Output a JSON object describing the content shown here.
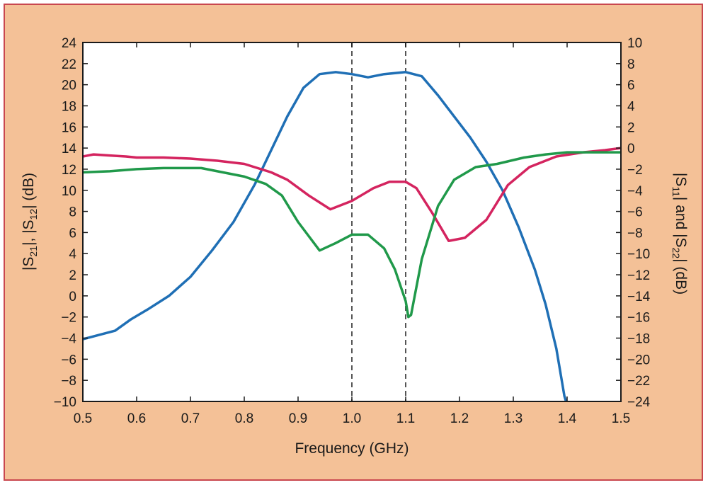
{
  "chart_data": {
    "type": "line",
    "title": "",
    "xlabel": "Frequency (GHz)",
    "ylabel_left": {
      "prefix": "|S",
      "s1": "21",
      "mid": "|, |S",
      "s2": "12",
      "suffix": "| (dB)"
    },
    "ylabel_right": {
      "prefix": "|S",
      "s1": "11",
      "mid": "| and |S",
      "s2": "22",
      "suffix": "| (dB)"
    },
    "xlim": [
      0.5,
      1.5
    ],
    "ylim_left": [
      -10,
      24
    ],
    "ylim_right": [
      -24,
      10
    ],
    "x_ticks": [
      "0.5",
      "0.6",
      "0.7",
      "0.8",
      "0.9",
      "1.0",
      "1.1",
      "1.2",
      "1.3",
      "1.4",
      "1.5"
    ],
    "y_ticks_left": [
      "24",
      "22",
      "20",
      "18",
      "16",
      "14",
      "12",
      "10",
      "8",
      "6",
      "4",
      "2",
      "0",
      "−2",
      "−4",
      "−6",
      "−8",
      "−10"
    ],
    "y_ticks_right": [
      "10",
      "8",
      "6",
      "4",
      "2",
      "0",
      "−2",
      "−4",
      "−6",
      "−8",
      "−10",
      "−12",
      "−14",
      "−16",
      "−18",
      "−20",
      "−22",
      "−24"
    ],
    "reference_lines_x": [
      1.0,
      1.1
    ],
    "series": [
      {
        "color": "#1f6fb5",
        "axis": "left",
        "points": [
          [
            0.5,
            -4.1
          ],
          [
            0.53,
            -3.7
          ],
          [
            0.56,
            -3.3
          ],
          [
            0.59,
            -2.2
          ],
          [
            0.62,
            -1.3
          ],
          [
            0.66,
            0.0
          ],
          [
            0.7,
            1.8
          ],
          [
            0.74,
            4.3
          ],
          [
            0.78,
            7.0
          ],
          [
            0.82,
            10.6
          ],
          [
            0.85,
            13.8
          ],
          [
            0.88,
            17.0
          ],
          [
            0.91,
            19.7
          ],
          [
            0.94,
            21.0
          ],
          [
            0.97,
            21.2
          ],
          [
            1.0,
            21.0
          ],
          [
            1.03,
            20.7
          ],
          [
            1.06,
            21.0
          ],
          [
            1.1,
            21.2
          ],
          [
            1.13,
            20.8
          ],
          [
            1.16,
            19.0
          ],
          [
            1.19,
            17.0
          ],
          [
            1.22,
            15.0
          ],
          [
            1.25,
            12.7
          ],
          [
            1.28,
            10.0
          ],
          [
            1.31,
            6.5
          ],
          [
            1.34,
            2.5
          ],
          [
            1.36,
            -0.8
          ],
          [
            1.38,
            -5.0
          ],
          [
            1.395,
            -9.5
          ],
          [
            1.398,
            -10.0
          ]
        ]
      },
      {
        "color": "#d4245f",
        "axis": "right",
        "points": [
          [
            0.5,
            -0.8
          ],
          [
            0.52,
            -0.6
          ],
          [
            0.55,
            -0.7
          ],
          [
            0.58,
            -0.8
          ],
          [
            0.6,
            -0.9
          ],
          [
            0.65,
            -0.9
          ],
          [
            0.7,
            -1.0
          ],
          [
            0.75,
            -1.2
          ],
          [
            0.8,
            -1.5
          ],
          [
            0.85,
            -2.3
          ],
          [
            0.88,
            -3.0
          ],
          [
            0.92,
            -4.5
          ],
          [
            0.96,
            -5.8
          ],
          [
            1.0,
            -5.0
          ],
          [
            1.04,
            -3.8
          ],
          [
            1.07,
            -3.2
          ],
          [
            1.1,
            -3.2
          ],
          [
            1.12,
            -3.8
          ],
          [
            1.15,
            -6.2
          ],
          [
            1.18,
            -8.8
          ],
          [
            1.21,
            -8.5
          ],
          [
            1.25,
            -6.8
          ],
          [
            1.29,
            -3.5
          ],
          [
            1.33,
            -1.8
          ],
          [
            1.38,
            -0.8
          ],
          [
            1.43,
            -0.4
          ],
          [
            1.47,
            -0.2
          ],
          [
            1.5,
            0.0
          ]
        ]
      },
      {
        "color": "#20994a",
        "axis": "right",
        "points": [
          [
            0.5,
            -2.3
          ],
          [
            0.55,
            -2.2
          ],
          [
            0.6,
            -2.0
          ],
          [
            0.65,
            -1.9
          ],
          [
            0.72,
            -1.9
          ],
          [
            0.76,
            -2.3
          ],
          [
            0.8,
            -2.7
          ],
          [
            0.84,
            -3.4
          ],
          [
            0.87,
            -4.5
          ],
          [
            0.9,
            -7.0
          ],
          [
            0.94,
            -9.7
          ],
          [
            0.97,
            -9.0
          ],
          [
            1.0,
            -8.2
          ],
          [
            1.03,
            -8.2
          ],
          [
            1.06,
            -9.5
          ],
          [
            1.08,
            -11.5
          ],
          [
            1.1,
            -14.5
          ],
          [
            1.105,
            -16.0
          ],
          [
            1.11,
            -15.8
          ],
          [
            1.13,
            -10.5
          ],
          [
            1.16,
            -5.5
          ],
          [
            1.19,
            -3.0
          ],
          [
            1.23,
            -1.8
          ],
          [
            1.27,
            -1.5
          ],
          [
            1.32,
            -0.9
          ],
          [
            1.36,
            -0.6
          ],
          [
            1.4,
            -0.4
          ],
          [
            1.45,
            -0.4
          ],
          [
            1.5,
            -0.4
          ]
        ]
      }
    ]
  }
}
